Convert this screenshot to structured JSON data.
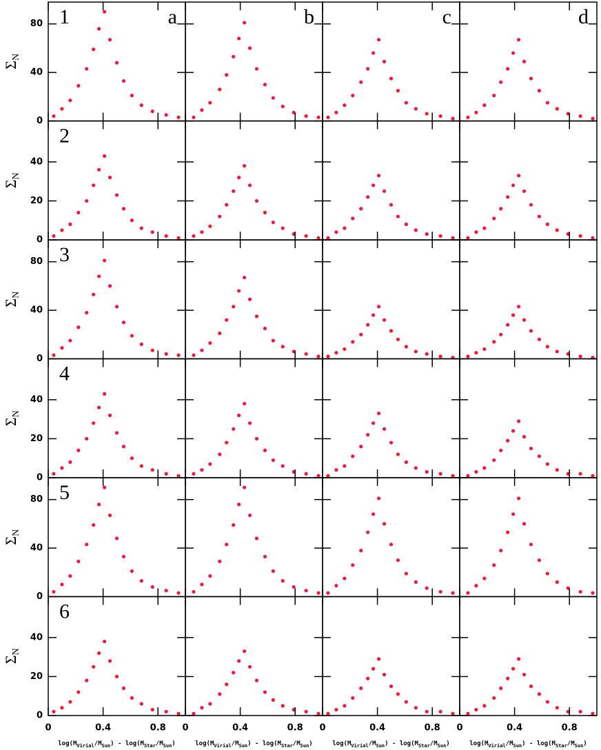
{
  "chart_data": [
    {
      "type": "scatter",
      "label": "1",
      "letter": "a",
      "ylabel": "Σ",
      "ylabel_sub": "N",
      "color": "#ff1438",
      "xlim": [
        0,
        1
      ],
      "ylim": [
        0,
        98
      ],
      "xticks": [
        0,
        0.4,
        0.8
      ],
      "yticks": [
        0,
        40,
        80
      ],
      "x": [
        0.04,
        0.1,
        0.16,
        0.22,
        0.28,
        0.33,
        0.37,
        0.41,
        0.45,
        0.5,
        0.55,
        0.61,
        0.68,
        0.76,
        0.86,
        0.95
      ],
      "y": [
        4,
        10,
        17,
        29,
        43,
        59,
        76,
        90,
        67,
        48,
        33,
        21,
        13,
        8,
        5,
        3
      ]
    },
    {
      "type": "scatter",
      "letter": "b",
      "color": "#ff1438",
      "xlim": [
        0,
        1
      ],
      "ylim": [
        0,
        98
      ],
      "xticks": [
        0,
        0.4,
        0.8
      ],
      "yticks": [
        0,
        40,
        80
      ],
      "x": [
        0.06,
        0.12,
        0.18,
        0.25,
        0.3,
        0.35,
        0.39,
        0.43,
        0.47,
        0.52,
        0.58,
        0.64,
        0.71,
        0.79,
        0.88,
        0.97
      ],
      "y": [
        3,
        9,
        15,
        26,
        38,
        53,
        68,
        81,
        60,
        43,
        30,
        19,
        12,
        7,
        4,
        3
      ]
    },
    {
      "type": "scatter",
      "letter": "c",
      "color": "#ff1438",
      "xlim": [
        0,
        1
      ],
      "ylim": [
        0,
        98
      ],
      "xticks": [
        0,
        0.4,
        0.8
      ],
      "yticks": [
        0,
        40,
        80
      ],
      "x": [
        0.04,
        0.1,
        0.16,
        0.22,
        0.28,
        0.33,
        0.37,
        0.41,
        0.45,
        0.5,
        0.55,
        0.61,
        0.68,
        0.76,
        0.86,
        0.95
      ],
      "y": [
        3,
        7,
        13,
        21,
        32,
        43,
        56,
        67,
        49,
        35,
        25,
        15,
        10,
        6,
        4,
        2
      ]
    },
    {
      "type": "scatter",
      "letter": "d",
      "color": "#ff1438",
      "xlim": [
        0,
        1
      ],
      "ylim": [
        0,
        98
      ],
      "xticks": [
        0,
        0.4,
        0.8
      ],
      "yticks": [
        0,
        40,
        80
      ],
      "x": [
        0.06,
        0.12,
        0.18,
        0.25,
        0.3,
        0.35,
        0.39,
        0.43,
        0.47,
        0.52,
        0.58,
        0.64,
        0.71,
        0.79,
        0.88,
        0.97
      ],
      "y": [
        3,
        7,
        13,
        21,
        32,
        43,
        56,
        67,
        49,
        35,
        25,
        15,
        10,
        6,
        4,
        2
      ]
    },
    {
      "type": "scatter",
      "label": "2",
      "ylabel": "Σ",
      "ylabel_sub": "N",
      "color": "#ff1438",
      "xlim": [
        0,
        1
      ],
      "ylim": [
        0,
        61
      ],
      "xticks": [
        0,
        0.4,
        0.8
      ],
      "yticks": [
        0,
        20,
        40
      ],
      "x": [
        0.04,
        0.1,
        0.16,
        0.22,
        0.28,
        0.33,
        0.37,
        0.41,
        0.45,
        0.5,
        0.55,
        0.61,
        0.68,
        0.76,
        0.86,
        0.95
      ],
      "y": [
        2,
        5,
        8,
        14,
        20,
        28,
        36,
        43,
        32,
        23,
        16,
        10,
        6,
        4,
        2,
        1
      ]
    },
    {
      "type": "scatter",
      "color": "#ff1438",
      "xlim": [
        0,
        1
      ],
      "ylim": [
        0,
        61
      ],
      "xticks": [
        0,
        0.4,
        0.8
      ],
      "yticks": [
        0,
        20,
        40
      ],
      "x": [
        0.06,
        0.12,
        0.18,
        0.25,
        0.3,
        0.35,
        0.39,
        0.43,
        0.47,
        0.52,
        0.58,
        0.64,
        0.71,
        0.79,
        0.88,
        0.97
      ],
      "y": [
        2,
        4,
        7,
        12,
        18,
        25,
        32,
        38,
        28,
        20,
        14,
        9,
        6,
        3,
        2,
        1
      ]
    },
    {
      "type": "scatter",
      "color": "#ff1438",
      "xlim": [
        0,
        1
      ],
      "ylim": [
        0,
        61
      ],
      "xticks": [
        0,
        0.4,
        0.8
      ],
      "yticks": [
        0,
        20,
        40
      ],
      "x": [
        0.04,
        0.1,
        0.16,
        0.22,
        0.28,
        0.33,
        0.37,
        0.41,
        0.45,
        0.5,
        0.55,
        0.61,
        0.68,
        0.76,
        0.86,
        0.95
      ],
      "y": [
        1,
        4,
        6,
        11,
        16,
        22,
        28,
        33,
        25,
        18,
        12,
        8,
        5,
        3,
        2,
        1
      ]
    },
    {
      "type": "scatter",
      "color": "#ff1438",
      "xlim": [
        0,
        1
      ],
      "ylim": [
        0,
        61
      ],
      "xticks": [
        0,
        0.4,
        0.8
      ],
      "yticks": [
        0,
        20,
        40
      ],
      "x": [
        0.06,
        0.12,
        0.18,
        0.25,
        0.3,
        0.35,
        0.39,
        0.43,
        0.47,
        0.52,
        0.58,
        0.64,
        0.71,
        0.79,
        0.88,
        0.97
      ],
      "y": [
        1,
        4,
        6,
        11,
        16,
        22,
        28,
        33,
        25,
        18,
        12,
        8,
        5,
        3,
        2,
        1
      ]
    },
    {
      "type": "scatter",
      "label": "3",
      "ylabel": "Σ",
      "ylabel_sub": "N",
      "color": "#ff1438",
      "xlim": [
        0,
        1
      ],
      "ylim": [
        0,
        98
      ],
      "xticks": [
        0,
        0.4,
        0.8
      ],
      "yticks": [
        0,
        40,
        80
      ],
      "x": [
        0.04,
        0.1,
        0.16,
        0.22,
        0.28,
        0.33,
        0.37,
        0.41,
        0.45,
        0.5,
        0.55,
        0.61,
        0.68,
        0.76,
        0.86,
        0.95
      ],
      "y": [
        3,
        9,
        15,
        26,
        38,
        53,
        68,
        81,
        60,
        43,
        30,
        19,
        12,
        7,
        4,
        3
      ]
    },
    {
      "type": "scatter",
      "color": "#ff1438",
      "xlim": [
        0,
        1
      ],
      "ylim": [
        0,
        98
      ],
      "xticks": [
        0,
        0.4,
        0.8
      ],
      "yticks": [
        0,
        40,
        80
      ],
      "x": [
        0.06,
        0.12,
        0.18,
        0.25,
        0.3,
        0.35,
        0.39,
        0.43,
        0.47,
        0.52,
        0.58,
        0.64,
        0.71,
        0.79,
        0.88,
        0.97
      ],
      "y": [
        3,
        7,
        13,
        21,
        32,
        43,
        56,
        67,
        49,
        35,
        25,
        15,
        10,
        6,
        4,
        2
      ]
    },
    {
      "type": "scatter",
      "color": "#ff1438",
      "xlim": [
        0,
        1
      ],
      "ylim": [
        0,
        98
      ],
      "xticks": [
        0,
        0.4,
        0.8
      ],
      "yticks": [
        0,
        40,
        80
      ],
      "x": [
        0.04,
        0.1,
        0.16,
        0.22,
        0.28,
        0.33,
        0.37,
        0.41,
        0.45,
        0.5,
        0.55,
        0.61,
        0.68,
        0.76,
        0.86,
        0.95
      ],
      "y": [
        2,
        5,
        8,
        14,
        20,
        28,
        36,
        43,
        32,
        23,
        16,
        10,
        6,
        4,
        2,
        1
      ]
    },
    {
      "type": "scatter",
      "color": "#ff1438",
      "xlim": [
        0,
        1
      ],
      "ylim": [
        0,
        98
      ],
      "xticks": [
        0,
        0.4,
        0.8
      ],
      "yticks": [
        0,
        40,
        80
      ],
      "x": [
        0.06,
        0.12,
        0.18,
        0.25,
        0.3,
        0.35,
        0.39,
        0.43,
        0.47,
        0.52,
        0.58,
        0.64,
        0.71,
        0.79,
        0.88,
        0.97
      ],
      "y": [
        2,
        5,
        8,
        14,
        20,
        28,
        36,
        43,
        32,
        23,
        16,
        10,
        6,
        4,
        2,
        1
      ]
    },
    {
      "type": "scatter",
      "label": "4",
      "ylabel": "Σ",
      "ylabel_sub": "N",
      "color": "#ff1438",
      "xlim": [
        0,
        1
      ],
      "ylim": [
        0,
        61
      ],
      "xticks": [
        0,
        0.4,
        0.8
      ],
      "yticks": [
        0,
        20,
        40
      ],
      "x": [
        0.04,
        0.1,
        0.16,
        0.22,
        0.28,
        0.33,
        0.37,
        0.41,
        0.45,
        0.5,
        0.55,
        0.61,
        0.68,
        0.76,
        0.86,
        0.95
      ],
      "y": [
        2,
        5,
        8,
        14,
        20,
        28,
        36,
        43,
        32,
        23,
        16,
        10,
        6,
        4,
        2,
        1
      ]
    },
    {
      "type": "scatter",
      "color": "#ff1438",
      "xlim": [
        0,
        1
      ],
      "ylim": [
        0,
        61
      ],
      "xticks": [
        0,
        0.4,
        0.8
      ],
      "yticks": [
        0,
        20,
        40
      ],
      "x": [
        0.06,
        0.12,
        0.18,
        0.25,
        0.3,
        0.35,
        0.39,
        0.43,
        0.47,
        0.52,
        0.58,
        0.64,
        0.71,
        0.79,
        0.88,
        0.97
      ],
      "y": [
        2,
        4,
        7,
        12,
        18,
        25,
        32,
        38,
        28,
        20,
        14,
        9,
        6,
        3,
        2,
        1
      ]
    },
    {
      "type": "scatter",
      "color": "#ff1438",
      "xlim": [
        0,
        1
      ],
      "ylim": [
        0,
        61
      ],
      "xticks": [
        0,
        0.4,
        0.8
      ],
      "yticks": [
        0,
        20,
        40
      ],
      "x": [
        0.04,
        0.1,
        0.16,
        0.22,
        0.28,
        0.33,
        0.37,
        0.41,
        0.45,
        0.5,
        0.55,
        0.61,
        0.68,
        0.76,
        0.86,
        0.95
      ],
      "y": [
        1,
        4,
        6,
        11,
        16,
        22,
        28,
        33,
        25,
        18,
        12,
        8,
        5,
        3,
        2,
        1
      ]
    },
    {
      "type": "scatter",
      "color": "#ff1438",
      "xlim": [
        0,
        1
      ],
      "ylim": [
        0,
        61
      ],
      "xticks": [
        0,
        0.4,
        0.8
      ],
      "yticks": [
        0,
        20,
        40
      ],
      "x": [
        0.06,
        0.12,
        0.18,
        0.25,
        0.3,
        0.35,
        0.39,
        0.43,
        0.47,
        0.52,
        0.58,
        0.64,
        0.71,
        0.79,
        0.88,
        0.97
      ],
      "y": [
        1,
        3,
        5,
        9,
        14,
        19,
        24,
        29,
        21,
        15,
        11,
        7,
        4,
        2,
        2,
        1
      ]
    },
    {
      "type": "scatter",
      "label": "5",
      "ylabel": "Σ",
      "ylabel_sub": "N",
      "color": "#ff1438",
      "xlim": [
        0,
        1
      ],
      "ylim": [
        0,
        98
      ],
      "xticks": [
        0,
        0.4,
        0.8
      ],
      "yticks": [
        0,
        40,
        80
      ],
      "x": [
        0.04,
        0.1,
        0.16,
        0.22,
        0.28,
        0.33,
        0.37,
        0.41,
        0.45,
        0.5,
        0.55,
        0.61,
        0.68,
        0.76,
        0.86,
        0.95
      ],
      "y": [
        4,
        10,
        17,
        29,
        43,
        59,
        76,
        90,
        67,
        48,
        33,
        21,
        13,
        8,
        5,
        3
      ]
    },
    {
      "type": "scatter",
      "color": "#ff1438",
      "xlim": [
        0,
        1
      ],
      "ylim": [
        0,
        98
      ],
      "xticks": [
        0,
        0.4,
        0.8
      ],
      "yticks": [
        0,
        40,
        80
      ],
      "x": [
        0.06,
        0.12,
        0.18,
        0.25,
        0.3,
        0.35,
        0.39,
        0.43,
        0.47,
        0.52,
        0.58,
        0.64,
        0.71,
        0.79,
        0.88,
        0.97
      ],
      "y": [
        4,
        10,
        17,
        29,
        43,
        59,
        76,
        90,
        67,
        48,
        33,
        21,
        13,
        8,
        5,
        3
      ]
    },
    {
      "type": "scatter",
      "color": "#ff1438",
      "xlim": [
        0,
        1
      ],
      "ylim": [
        0,
        98
      ],
      "xticks": [
        0,
        0.4,
        0.8
      ],
      "yticks": [
        0,
        40,
        80
      ],
      "x": [
        0.04,
        0.1,
        0.16,
        0.22,
        0.28,
        0.33,
        0.37,
        0.41,
        0.45,
        0.5,
        0.55,
        0.61,
        0.68,
        0.76,
        0.86,
        0.95
      ],
      "y": [
        3,
        9,
        15,
        26,
        38,
        53,
        68,
        81,
        60,
        43,
        30,
        19,
        12,
        7,
        4,
        3
      ]
    },
    {
      "type": "scatter",
      "color": "#ff1438",
      "xlim": [
        0,
        1
      ],
      "ylim": [
        0,
        98
      ],
      "xticks": [
        0,
        0.4,
        0.8
      ],
      "yticks": [
        0,
        40,
        80
      ],
      "x": [
        0.06,
        0.12,
        0.18,
        0.25,
        0.3,
        0.35,
        0.39,
        0.43,
        0.47,
        0.52,
        0.58,
        0.64,
        0.71,
        0.79,
        0.88,
        0.97
      ],
      "y": [
        3,
        9,
        15,
        26,
        38,
        53,
        68,
        81,
        60,
        43,
        30,
        19,
        12,
        7,
        4,
        3
      ]
    },
    {
      "type": "scatter",
      "label": "6",
      "ylabel": "Σ",
      "ylabel_sub": "N",
      "color": "#ff1438",
      "xlim": [
        0,
        1
      ],
      "ylim": [
        0,
        61
      ],
      "xticks": [
        0,
        0.4,
        0.8
      ],
      "yticks": [
        0,
        20,
        40
      ],
      "xlabel_parts": [
        "log(M",
        "Virial",
        "/M",
        "Sun",
        ") - log(M",
        "Star",
        "/M",
        "Sun",
        ")"
      ],
      "x": [
        0.04,
        0.1,
        0.16,
        0.22,
        0.28,
        0.33,
        0.37,
        0.41,
        0.45,
        0.5,
        0.55,
        0.61,
        0.68,
        0.76,
        0.86,
        0.95
      ],
      "y": [
        2,
        4,
        7,
        12,
        18,
        25,
        32,
        38,
        28,
        20,
        14,
        9,
        6,
        3,
        2,
        1
      ]
    },
    {
      "type": "scatter",
      "color": "#ff1438",
      "xlim": [
        0,
        1
      ],
      "ylim": [
        0,
        61
      ],
      "xticks": [
        0,
        0.4,
        0.8
      ],
      "yticks": [
        0,
        20,
        40
      ],
      "xlabel_parts": [
        "log(M",
        "Virial",
        "/M",
        "Sun",
        ") - log(M",
        "Star",
        "/M",
        "Sun",
        ")"
      ],
      "x": [
        0.06,
        0.12,
        0.18,
        0.25,
        0.3,
        0.35,
        0.39,
        0.43,
        0.47,
        0.52,
        0.58,
        0.64,
        0.71,
        0.79,
        0.88,
        0.97
      ],
      "y": [
        1,
        4,
        6,
        11,
        16,
        22,
        28,
        33,
        25,
        18,
        12,
        8,
        5,
        3,
        2,
        1
      ]
    },
    {
      "type": "scatter",
      "color": "#ff1438",
      "xlim": [
        0,
        1
      ],
      "ylim": [
        0,
        61
      ],
      "xticks": [
        0,
        0.4,
        0.8
      ],
      "yticks": [
        0,
        20,
        40
      ],
      "xlabel_parts": [
        "log(M",
        "Virial",
        "/M",
        "Sun",
        ") - log(M",
        "Star",
        "/M",
        "Sun",
        ")"
      ],
      "x": [
        0.04,
        0.1,
        0.16,
        0.22,
        0.28,
        0.33,
        0.37,
        0.41,
        0.45,
        0.5,
        0.55,
        0.61,
        0.68,
        0.76,
        0.86,
        0.95
      ],
      "y": [
        1,
        3,
        5,
        9,
        14,
        19,
        24,
        29,
        21,
        15,
        11,
        7,
        4,
        2,
        2,
        1
      ]
    },
    {
      "type": "scatter",
      "color": "#ff1438",
      "xlim": [
        0,
        1
      ],
      "ylim": [
        0,
        61
      ],
      "xticks": [
        0,
        0.4,
        0.8
      ],
      "yticks": [
        0,
        20,
        40
      ],
      "xlabel_parts": [
        "log(M",
        "Virial",
        "/M",
        "Sun",
        ") - log(M",
        "Star",
        "/M",
        "Sun",
        ")"
      ],
      "x": [
        0.06,
        0.12,
        0.18,
        0.25,
        0.3,
        0.35,
        0.39,
        0.43,
        0.47,
        0.52,
        0.58,
        0.64,
        0.71,
        0.79,
        0.88,
        0.97
      ],
      "y": [
        1,
        3,
        5,
        9,
        14,
        19,
        24,
        29,
        21,
        15,
        11,
        7,
        4,
        2,
        2,
        1
      ]
    }
  ]
}
